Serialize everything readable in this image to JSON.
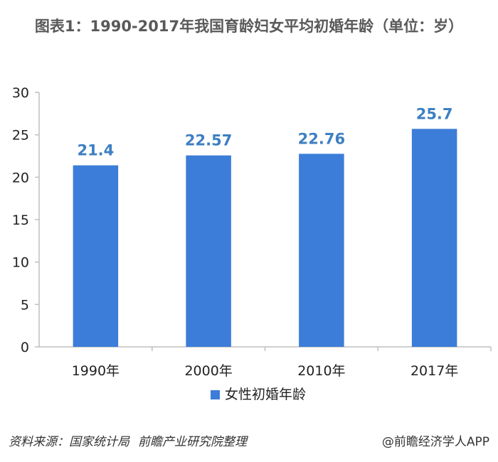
{
  "title": "图表1：1990-2017年我国育龄妇女平均初婚年龄（单位：岁）",
  "footer": {
    "source_label": "资料来源：国家统计局",
    "source_org": "前瞻产业研究院整理",
    "brand": "@前瞻经济学人APP"
  },
  "colors": {
    "bar": "#3b7dd8",
    "label": "#3d7fc2",
    "axis": "#bfbfbf"
  },
  "chart_data": {
    "type": "bar",
    "title": "图表1：1990-2017年我国育龄妇女平均初婚年龄（单位：岁）",
    "categories": [
      "1990年",
      "2000年",
      "2010年",
      "2017年"
    ],
    "series": [
      {
        "name": "女性初婚年龄",
        "values": [
          21.4,
          22.57,
          22.76,
          25.7
        ]
      }
    ],
    "data_labels": [
      "21.4",
      "22.57",
      "22.76",
      "25.7"
    ],
    "y_ticks": [
      "0",
      "5",
      "10",
      "15",
      "20",
      "25",
      "30"
    ],
    "ylim": [
      0,
      30
    ],
    "xlabel": "",
    "ylabel": "",
    "grid": false,
    "legend": "bottom"
  }
}
